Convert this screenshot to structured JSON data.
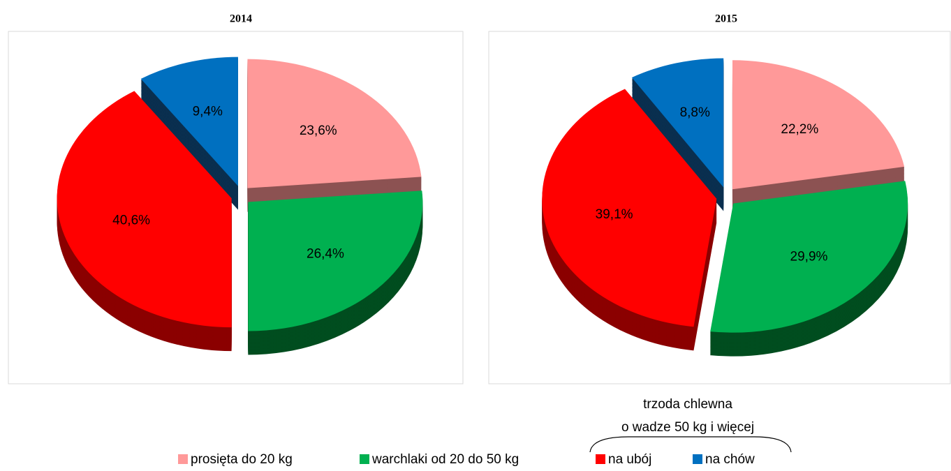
{
  "chart_data": [
    {
      "type": "pie",
      "title": "2014",
      "values": [
        23.6,
        26.4,
        40.6,
        9.4
      ],
      "value_labels": [
        "23,6%",
        "26,4%",
        "40,6%",
        "9,4%"
      ]
    },
    {
      "type": "pie",
      "title": "2015",
      "values": [
        22.2,
        29.9,
        39.1,
        8.8
      ],
      "value_labels": [
        "22,2%",
        "29,9%",
        "39,1%",
        "8,8%"
      ]
    }
  ],
  "legend": {
    "items": [
      "prosięta do 20 kg",
      "warchlaki od 20 do 50 kg",
      "na ubój",
      "na chów"
    ],
    "colors": [
      "#ff9999",
      "#00b050",
      "#ff0000",
      "#0070c0"
    ],
    "side_colors": [
      "#8c5252",
      "#004d1f",
      "#8b0000",
      "#0a2f4f"
    ]
  },
  "annotation": [
    "trzoda chlewna",
    "o wadze 50 kg i więcej"
  ]
}
